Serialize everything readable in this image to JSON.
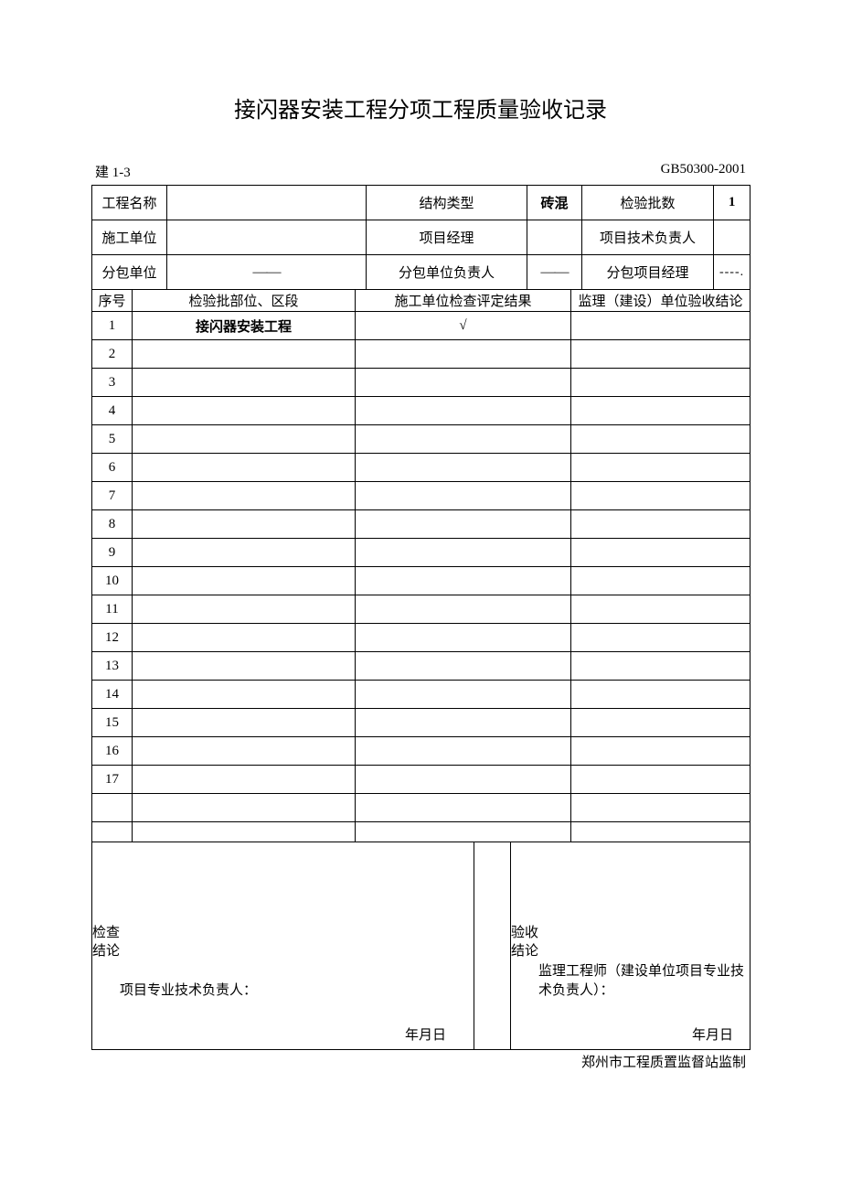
{
  "title": "接闪器安装工程分项工程质量验收记录",
  "meta": {
    "left": "建 1-3",
    "right": "GB50300-2001"
  },
  "header": {
    "row1": {
      "c1": "工程名称",
      "c2": "",
      "c3": "结构类型",
      "c4": "砖混",
      "c5": "检验批数",
      "c6": "1"
    },
    "row2": {
      "c1": "施工单位",
      "c2": "",
      "c3": "项目经理",
      "c4": "",
      "c5": "项目技术负责人",
      "c6": ""
    },
    "row3": {
      "c1": "分包单位",
      "c2": "——",
      "c3": "分包单位负责人",
      "c4": "——",
      "c5": "分包项目经理",
      "c6": "----."
    }
  },
  "subhead": {
    "c1": "序号",
    "c2": "检验批部位、区段",
    "c3": "施工单位检查评定结果",
    "c4": "监理（建设）单位验收结论"
  },
  "rows": [
    {
      "n": "1",
      "a": "接闪器安装工程",
      "b": "√",
      "c": ""
    },
    {
      "n": "2",
      "a": "",
      "b": "",
      "c": ""
    },
    {
      "n": "3",
      "a": "",
      "b": "",
      "c": ""
    },
    {
      "n": "4",
      "a": "",
      "b": "",
      "c": ""
    },
    {
      "n": "5",
      "a": "",
      "b": "",
      "c": ""
    },
    {
      "n": "6",
      "a": "",
      "b": "",
      "c": ""
    },
    {
      "n": "7",
      "a": "",
      "b": "",
      "c": ""
    },
    {
      "n": "8",
      "a": "",
      "b": "",
      "c": ""
    },
    {
      "n": "9",
      "a": "",
      "b": "",
      "c": ""
    },
    {
      "n": "10",
      "a": "",
      "b": "",
      "c": ""
    },
    {
      "n": "11",
      "a": "",
      "b": "",
      "c": ""
    },
    {
      "n": "12",
      "a": "",
      "b": "",
      "c": ""
    },
    {
      "n": "13",
      "a": "",
      "b": "",
      "c": ""
    },
    {
      "n": "14",
      "a": "",
      "b": "",
      "c": ""
    },
    {
      "n": "15",
      "a": "",
      "b": "",
      "c": ""
    },
    {
      "n": "16",
      "a": "",
      "b": "",
      "c": ""
    },
    {
      "n": "17",
      "a": "",
      "b": "",
      "c": ""
    },
    {
      "n": "",
      "a": "",
      "b": "",
      "c": ""
    }
  ],
  "sig": {
    "left_label_a": "检查",
    "left_label_b": "结论",
    "right_label_a": "验收",
    "right_label_b": "结论",
    "left_signer": "项目专业技术负责人：",
    "right_signer": "监理工程师（建设单位项目专业技术负责人）：",
    "date": "年月日"
  },
  "footer": "郑州市工程质置监督站监制",
  "style": {
    "page_bg": "#ffffff",
    "text_color": "#000000",
    "border_color": "#000000",
    "title_fontsize": 24,
    "body_fontsize": 15,
    "col_widths_header": [
      82,
      218,
      170,
      66,
      144,
      40
    ],
    "col_widths_sub": [
      44,
      244,
      218,
      214
    ],
    "header_row_h": 38,
    "subhead_row_h": 24,
    "data_row_h": 31,
    "blank_row_h": 22,
    "sig_row_h": 200
  }
}
